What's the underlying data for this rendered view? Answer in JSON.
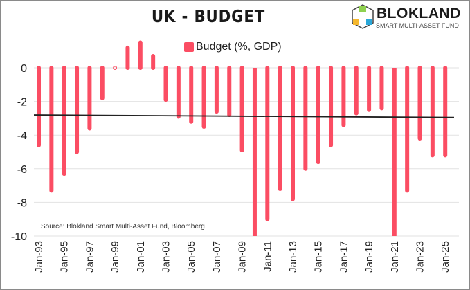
{
  "header": {
    "title": "UK - BUDGET"
  },
  "logo": {
    "brand": "BLOKLAND",
    "subtitle": "SMART MULTI-ASSET FUND"
  },
  "source": "Source: Blokland Smart Multi-Asset Fund, Bloomberg",
  "chart_data": {
    "type": "bar",
    "title": "UK - BUDGET",
    "xlabel": "",
    "ylabel": "",
    "ylim": [
      -10,
      2
    ],
    "yticks": [
      0,
      -2,
      -4,
      -6,
      -8,
      -10
    ],
    "ytick_labels": [
      "0",
      "-2",
      "-4",
      "-6",
      "-8",
      "-10"
    ],
    "grid": true,
    "legend": {
      "position": "top-center",
      "entries": [
        "Budget (%, GDP)"
      ]
    },
    "color": "#fb4d63",
    "trend_color": "#222222",
    "x": [
      "1993",
      "1994",
      "1995",
      "1996",
      "1997",
      "1998",
      "1999",
      "2000",
      "2001",
      "2002",
      "2003",
      "2004",
      "2005",
      "2006",
      "2007",
      "2008",
      "2009",
      "2010",
      "2011",
      "2012",
      "2013",
      "2014",
      "2015",
      "2016",
      "2017",
      "2018",
      "2019",
      "2020",
      "2021",
      "2022",
      "2023",
      "2024",
      "2025"
    ],
    "xtick_labels": [
      "Jan-93",
      "Jan-95",
      "Jan-97",
      "Jan-99",
      "Jan-01",
      "Jan-03",
      "Jan-05",
      "Jan-07",
      "Jan-09",
      "Jan-11",
      "Jan-13",
      "Jan-15",
      "Jan-17",
      "Jan-19",
      "Jan-21",
      "Jan-23",
      "Jan-25"
    ],
    "series": [
      {
        "name": "Budget (%, GDP)",
        "values": [
          -4.6,
          -7.3,
          -6.3,
          -5.0,
          -3.6,
          -1.8,
          0.1,
          1.2,
          1.5,
          0.7,
          -1.9,
          -2.9,
          -3.2,
          -3.5,
          -2.6,
          -2.8,
          -4.9,
          -10.1,
          -9.0,
          -7.2,
          -7.8,
          -6.0,
          -5.6,
          -4.6,
          -3.4,
          -2.7,
          -2.5,
          -2.4,
          -10.1,
          -7.3,
          -4.2,
          -5.2,
          -5.2
        ]
      }
    ],
    "trend_line": {
      "start": -2.8,
      "end": -2.95
    }
  }
}
